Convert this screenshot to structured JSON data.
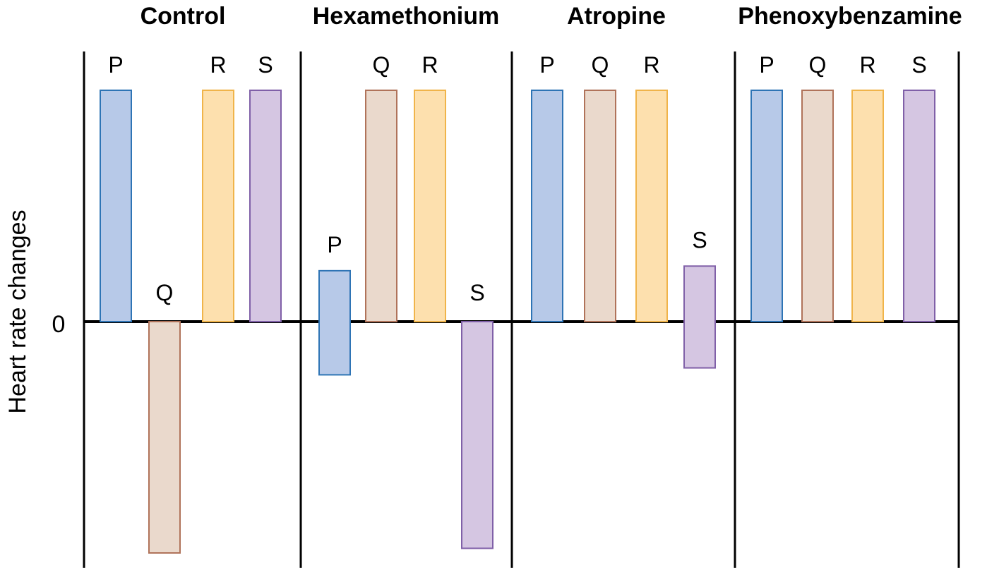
{
  "chart_data": {
    "type": "bar",
    "title": "",
    "ylabel": "Heart rate changes",
    "xlabel": "",
    "zero_label": "0",
    "ylim": [
      -100,
      100
    ],
    "grid": false,
    "legend": "none",
    "categories": [
      "P",
      "Q",
      "R",
      "S"
    ],
    "colors": {
      "P": {
        "fill": "#b7c9e8",
        "stroke": "#2e74b5"
      },
      "Q": {
        "fill": "#ead9cc",
        "stroke": "#b0735a"
      },
      "R": {
        "fill": "#fde0ae",
        "stroke": "#f0b44a"
      },
      "S": {
        "fill": "#d5c6e2",
        "stroke": "#8060a8"
      }
    },
    "panels": [
      {
        "name": "Control",
        "bars": [
          {
            "label": "P",
            "value": 100
          },
          {
            "label": "Q",
            "value": -100
          },
          {
            "label": "R",
            "value": 100
          },
          {
            "label": "S",
            "value": 100
          }
        ]
      },
      {
        "name": "Hexamethonium",
        "bars": [
          {
            "label": "P",
            "value": 22
          },
          {
            "label": "Q",
            "value": 100
          },
          {
            "label": "R",
            "value": 100
          },
          {
            "label": "S",
            "value": -98
          }
        ],
        "secondary_values": {
          "P": -23
        }
      },
      {
        "name": "Atropine",
        "bars": [
          {
            "label": "P",
            "value": 100
          },
          {
            "label": "Q",
            "value": 100
          },
          {
            "label": "R",
            "value": 100
          },
          {
            "label": "S",
            "value": 24
          }
        ],
        "secondary_values": {
          "S": -20
        }
      },
      {
        "name": "Phenoxybenzamine",
        "bars": [
          {
            "label": "P",
            "value": 100
          },
          {
            "label": "Q",
            "value": 100
          },
          {
            "label": "R",
            "value": 100
          },
          {
            "label": "S",
            "value": 100
          }
        ]
      }
    ]
  }
}
